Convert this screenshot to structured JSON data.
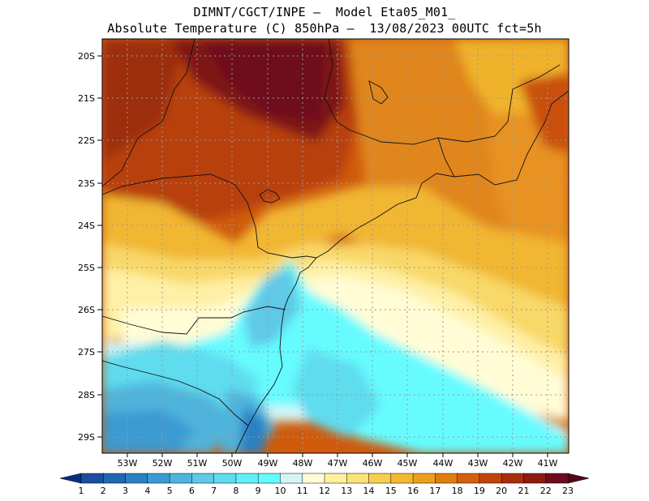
{
  "header": {
    "line1": "DIMNT/CGCT/INPE –  Model Eta05_M01_",
    "line2": "Absolute Temperature (C) 850hPa –  13/08/2023 00UTC fct=5h"
  },
  "map": {
    "lat_labels": [
      "20S",
      "21S",
      "22S",
      "23S",
      "24S",
      "25S",
      "26S",
      "27S",
      "28S",
      "29S"
    ],
    "lon_labels": [
      "53W",
      "52W",
      "51W",
      "50W",
      "49W",
      "48W",
      "47W",
      "46W",
      "45W",
      "44W",
      "43W",
      "42W",
      "41W"
    ]
  },
  "colorbar": {
    "labels": [
      "1",
      "2",
      "3",
      "4",
      "5",
      "6",
      "7",
      "8",
      "9",
      "10",
      "11",
      "12",
      "13",
      "14",
      "15",
      "16",
      "17",
      "18",
      "19",
      "20",
      "21",
      "22",
      "23"
    ],
    "colors": [
      "#0d3a8a",
      "#1a4f9f",
      "#2167b1",
      "#2a81c3",
      "#3a9bd2",
      "#4fb4dc",
      "#5fc9e6",
      "#5fdcee",
      "#63eef7",
      "#66fbff",
      "#d2f6f8",
      "#fffcd6",
      "#fff0a0",
      "#fbe37a",
      "#f6cf52",
      "#f2b933",
      "#eda01e",
      "#e07d10",
      "#d55f0c",
      "#c2420c",
      "#a82d0c",
      "#8c1c10",
      "#6e0b1e"
    ],
    "under_color": "#0b2f80",
    "over_color": "#550818"
  }
}
